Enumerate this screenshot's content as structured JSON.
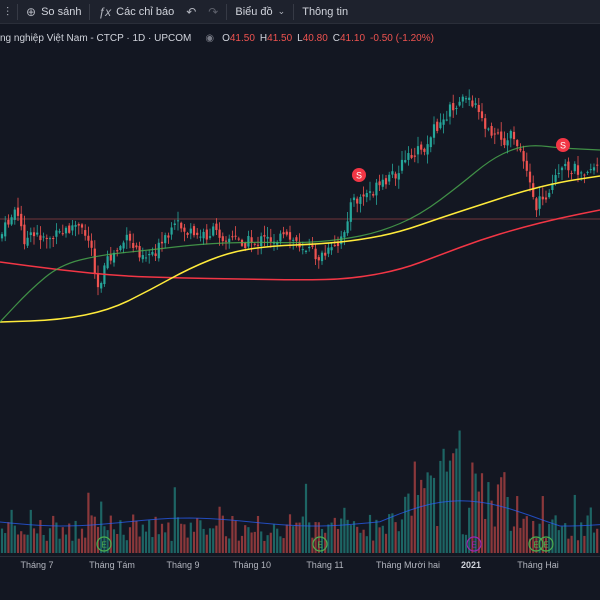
{
  "toolbar": {
    "compare_label": "So sánh",
    "indicators_label": "Các chỉ báo",
    "chart_type_label": "Biểu đồ",
    "info_label": "Thông tin"
  },
  "legend": {
    "symbol_text": "ng nghiệp Việt Nam - CTCP · 1D · UPCOM",
    "open_label": "O",
    "open": "41.50",
    "high_label": "H",
    "high": "41.50",
    "low_label": "L",
    "low": "40.80",
    "close_label": "C",
    "close": "41.10",
    "change": "-0.50 (-1.20%)"
  },
  "colors": {
    "up": "#26a69a",
    "down": "#ef5350",
    "ma_green": "#4caf50",
    "ma_yellow": "#ffeb3b",
    "ma_red": "#f23645",
    "background": "#131722"
  },
  "chart_data": {
    "type": "candlestick",
    "x_axis_labels": [
      "Tháng 7",
      "Tháng Tám",
      "Tháng 9",
      "Tháng 10",
      "Tháng 11",
      "Tháng Mười hai",
      "2021",
      "Tháng Hai"
    ],
    "split_marker_label": "S",
    "earnings_marker_label": "E"
  }
}
